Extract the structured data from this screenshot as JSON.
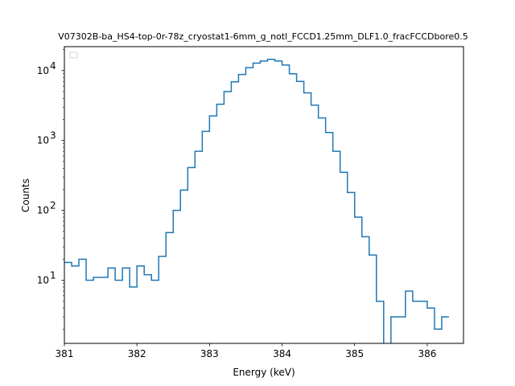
{
  "chart_data": {
    "type": "line",
    "drawstyle": "steps",
    "title": "V07302B-ba_HS4-top-0r-78z_cryostat1-6mm_g_notl_FCCD1.25mm_DLF1.0_fracFCCDbore0.5",
    "xlabel": "Energy (keV)",
    "ylabel": "Counts",
    "xlim": [
      381,
      386.5
    ],
    "ylim": [
      1.25,
      22000
    ],
    "yscale": "log",
    "grid": false,
    "legend": "top-left (empty)",
    "line_color": "#1f77b4",
    "x_ticks": [
      381,
      382,
      383,
      384,
      385,
      386
    ],
    "x_tick_labels": [
      "381",
      "382",
      "383",
      "384",
      "385",
      "386"
    ],
    "y_ticks": [
      10,
      100,
      1000,
      10000
    ],
    "y_tick_labels": [
      "10",
      "10",
      "10",
      "10"
    ],
    "y_tick_exponents": [
      "1",
      "2",
      "3",
      "4"
    ],
    "bin_edges_start": 381,
    "bin_width": 0.1,
    "counts": [
      18,
      16,
      20,
      10,
      11,
      11,
      15,
      10,
      15,
      8,
      16,
      12,
      10,
      22,
      48,
      100,
      195,
      410,
      700,
      1350,
      2250,
      3300,
      5000,
      6900,
      8800,
      11000,
      12800,
      13700,
      14500,
      13700,
      12000,
      9000,
      7000,
      4800,
      3200,
      2100,
      1300,
      700,
      350,
      180,
      80,
      42,
      23,
      5,
      0,
      3,
      3,
      7,
      5,
      5,
      4,
      2,
      3
    ]
  }
}
